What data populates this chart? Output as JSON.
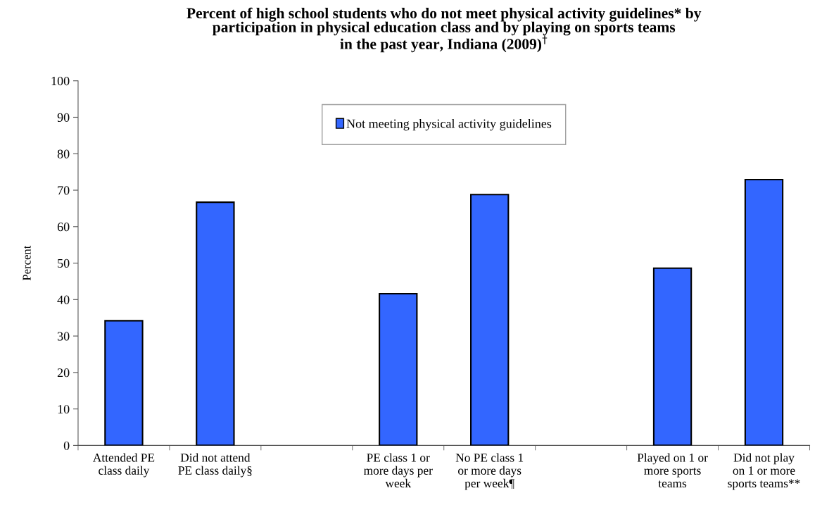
{
  "chart_data": {
    "type": "bar",
    "title": "Percent of high school students who do not meet physical activity guidelines* by\nparticipation in physical education class and by playing on sports teams\nin the past year, Indiana (2009)$^{†}$",
    "ylabel": "Percent",
    "categories": [
      "Attended PE\nclass daily",
      "Did not attend\nPE class daily§",
      null,
      "PE class 1 or\nmore days per\nweek",
      "No PE class 1\nor more days\nper week¶",
      null,
      "Played on 1 or\nmore sports\nteams",
      "Did not play\non 1 or more\nsports teams**"
    ],
    "series": [
      {
        "name": "Not meeting physical activity guidelines",
        "color": "#3366ff",
        "values": [
          34.2,
          66.7,
          null,
          41.6,
          68.8,
          null,
          48.6,
          72.9
        ]
      }
    ],
    "ylim": [
      0,
      100
    ],
    "yticks": [
      0,
      10,
      20,
      30,
      40,
      50,
      60,
      70,
      80,
      90,
      100
    ],
    "grid": false,
    "legend": "top"
  }
}
